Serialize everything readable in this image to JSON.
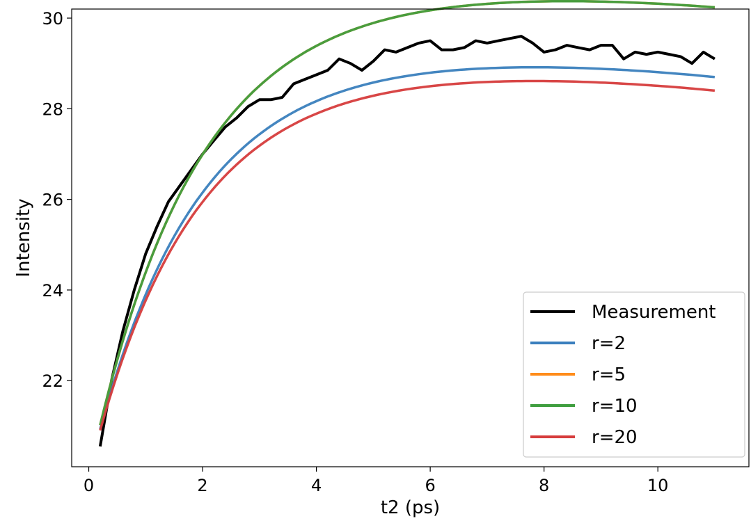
{
  "chart_data": {
    "type": "line",
    "title": "",
    "xlabel": "t2 (ps)",
    "ylabel": "Intensity",
    "xlim": [
      -0.3,
      11.6
    ],
    "ylim": [
      20.1,
      30.2
    ],
    "xticks": [
      0,
      2,
      4,
      6,
      8,
      10
    ],
    "yticks": [
      22,
      24,
      26,
      28,
      30
    ],
    "grid": false,
    "legend_position": "lower-right",
    "series": [
      {
        "name": "Measurement",
        "color": "#000000",
        "x": [
          0.2,
          0.4,
          0.6,
          0.8,
          1.0,
          1.2,
          1.4,
          1.6,
          1.8,
          2.0,
          2.2,
          2.4,
          2.6,
          2.8,
          3.0,
          3.2,
          3.4,
          3.6,
          3.8,
          4.0,
          4.2,
          4.4,
          4.6,
          4.8,
          5.0,
          5.2,
          5.4,
          5.6,
          5.8,
          6.0,
          6.2,
          6.4,
          6.6,
          6.8,
          7.0,
          7.2,
          7.4,
          7.6,
          7.8,
          8.0,
          8.2,
          8.4,
          8.6,
          8.8,
          9.0,
          9.2,
          9.4,
          9.6,
          9.8,
          10.0,
          10.2,
          10.4,
          10.6,
          10.8,
          11.0
        ],
        "y": [
          20.55,
          22.0,
          23.1,
          24.0,
          24.8,
          25.4,
          25.95,
          26.3,
          26.65,
          27.0,
          27.3,
          27.6,
          27.8,
          28.05,
          28.2,
          28.2,
          28.25,
          28.55,
          28.65,
          28.75,
          28.85,
          29.1,
          29.0,
          28.85,
          29.05,
          29.3,
          29.25,
          29.35,
          29.45,
          29.5,
          29.3,
          29.3,
          29.35,
          29.5,
          29.45,
          29.5,
          29.55,
          29.6,
          29.45,
          29.25,
          29.3,
          29.4,
          29.35,
          29.3,
          29.4,
          29.4,
          29.1,
          29.25,
          29.2,
          29.25,
          29.2,
          29.15,
          29.0,
          29.25,
          29.1
        ]
      },
      {
        "name": "r=2",
        "color": "#3a7fbd",
        "A": 28.7,
        "B": 0.135,
        "k": 0.575,
        "x0": 0.2,
        "x1": 11.0
      },
      {
        "name": "r=5",
        "color": "#ff8c1a",
        "A": 30.25,
        "B": 0.11,
        "k": 0.55,
        "x0": 0.2,
        "x1": 11.0
      },
      {
        "name": "r=10",
        "color": "#3f9e3f",
        "A": 30.25,
        "B": 0.11,
        "k": 0.55,
        "x0": 0.2,
        "x1": 11.0
      },
      {
        "name": "r=20",
        "color": "#d63c3c",
        "A": 28.4,
        "B": 0.132,
        "k": 0.575,
        "x0": 0.2,
        "x1": 11.0
      }
    ]
  }
}
